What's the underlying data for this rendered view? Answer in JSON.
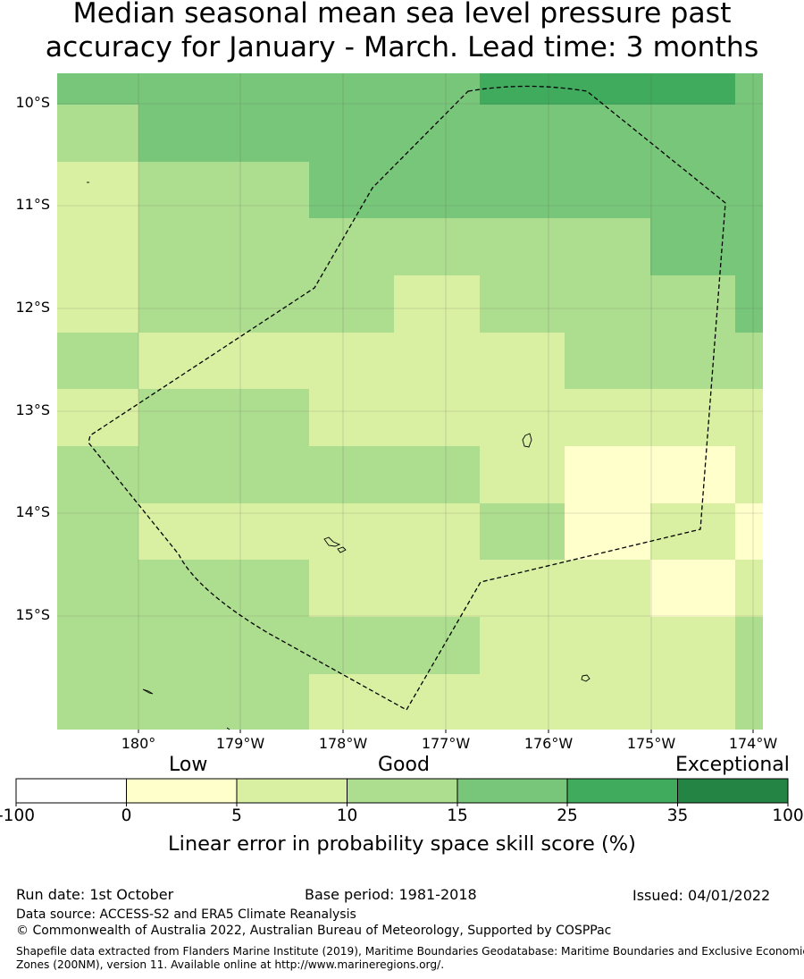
{
  "title_line1": "Median seasonal mean sea level pressure past",
  "title_line2": "accuracy for January - March. Lead time: 3 months",
  "map": {
    "latitude_labels": [
      "10°S",
      "11°S",
      "12°S",
      "13°S",
      "14°S",
      "15°S"
    ],
    "longitude_labels": [
      "180°",
      "179°W",
      "178°W",
      "177°W",
      "176°W",
      "175°W",
      "174°W"
    ],
    "lon_range": [
      -180.8,
      -173.9
    ],
    "lat_range": [
      -16.1,
      -9.7
    ]
  },
  "legend": {
    "categories": [
      "Low",
      "Good",
      "Exceptional"
    ],
    "ticks": [
      "-100",
      "0",
      "5",
      "10",
      "15",
      "25",
      "35",
      "100"
    ],
    "colors": [
      "#ffffff",
      "#ffffcc",
      "#d9f0a3",
      "#addd8e",
      "#78c679",
      "#41ab5d",
      "#238443"
    ],
    "axis_title": "Linear error in probability space skill score (%)"
  },
  "footer": {
    "run_date": "Run date: 1st October",
    "base_period": "Base period: 1981-2018",
    "issued": "Issued: 04/01/2022",
    "data_source": "Data source: ACCESS-S2 and ERA5 Climate Reanalysis",
    "copyright": "© Commonwealth of Australia 2022, Australian Bureau of Meteorology, Supported by COSPPac",
    "shapefile_note": "Shapefile data extracted from Flanders Marine Institute (2019), Maritime Boundaries Geodatabase: Maritime Boundaries and Exclusive Economic Zones (200NM), version 11. Available online at http://www.marineregions.org/."
  }
}
